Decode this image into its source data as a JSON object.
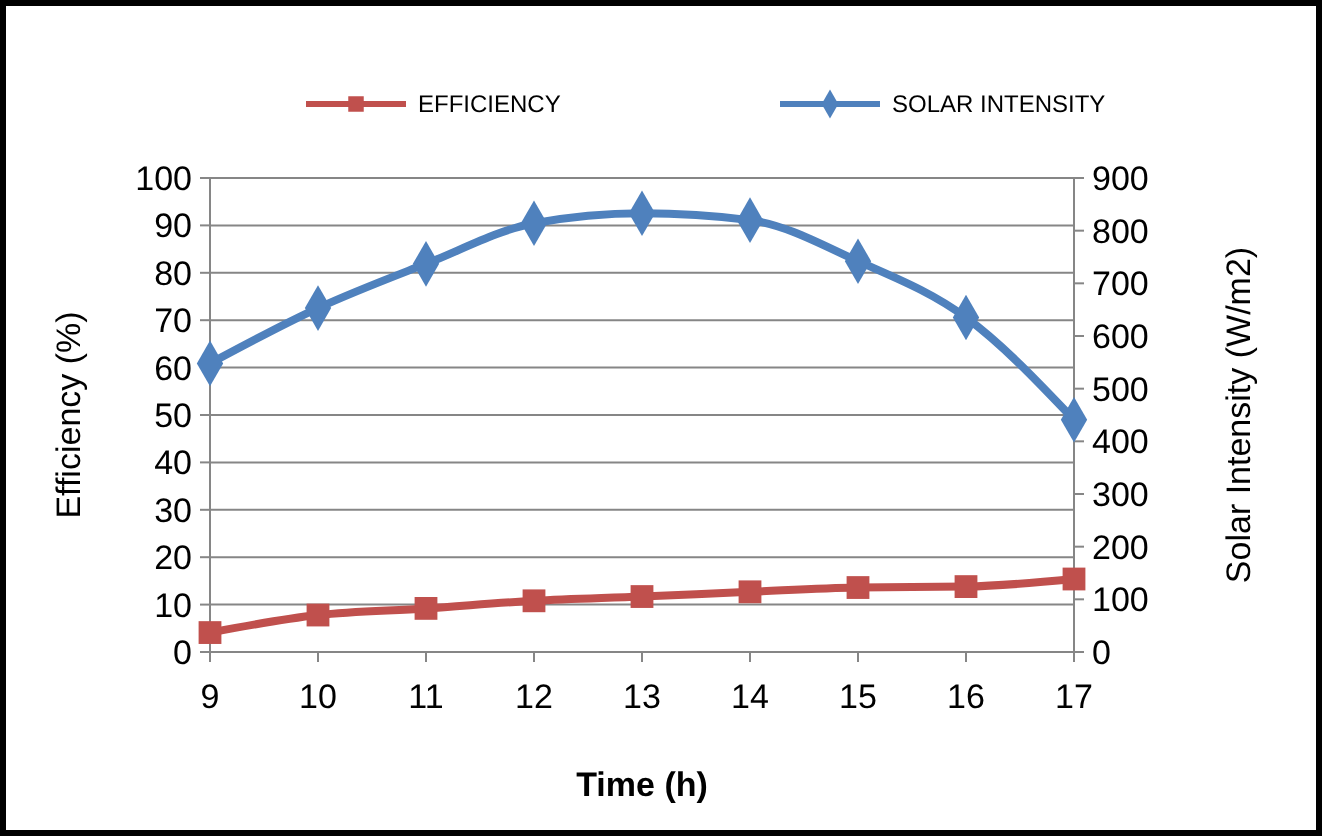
{
  "chart_data": {
    "type": "line",
    "xlabel": "Time (h)",
    "ylabel": "Efficiency (%)",
    "y2label": "Solar Intensity (W/m2)",
    "categories": [
      "9",
      "10",
      "11",
      "12",
      "13",
      "14",
      "15",
      "16",
      "17"
    ],
    "series": [
      {
        "name": "EFFICIENCY",
        "color": "#c0504d",
        "marker": "square",
        "values": [
          4.1,
          7.8,
          9.2,
          10.8,
          11.7,
          12.7,
          13.6,
          13.8,
          15.4
        ]
      },
      {
        "name": "SOLAR INTENSITY",
        "color": "#4f81bd",
        "marker": "diamond",
        "axis": "y2",
        "values": [
          548,
          653,
          737,
          814,
          833,
          820,
          742,
          635,
          441
        ]
      }
    ],
    "ylim": [
      0,
      100
    ],
    "yticks": [
      0,
      10,
      20,
      30,
      40,
      50,
      60,
      70,
      80,
      90,
      100
    ],
    "y2lim": [
      0,
      900
    ],
    "y2ticks": [
      0,
      100,
      200,
      300,
      400,
      500,
      600,
      700,
      800,
      900
    ],
    "grid": "y",
    "legend": "top"
  }
}
